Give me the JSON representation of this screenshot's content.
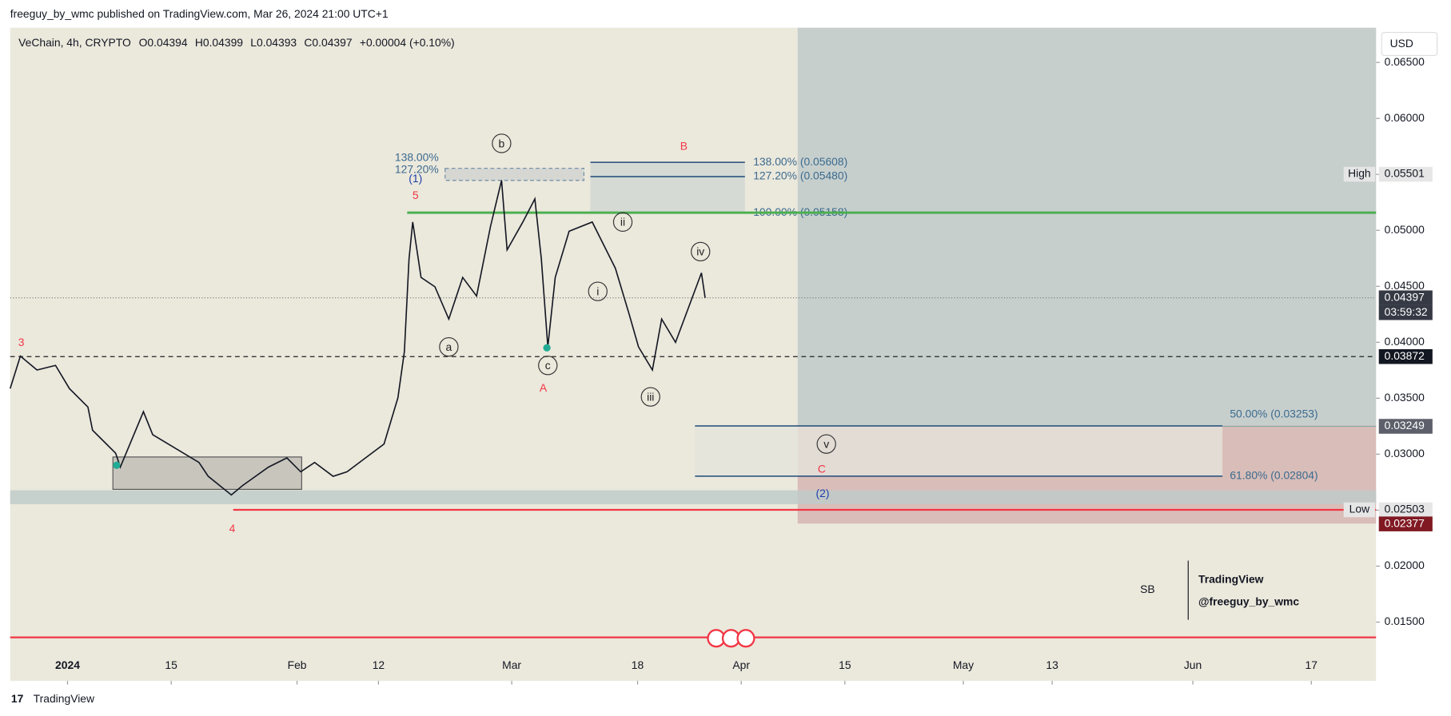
{
  "header": "freeguy_by_wmc published on TradingView.com, Mar 26, 2024 21:00 UTC+1",
  "footer": "TradingView",
  "currency": "USD",
  "watermark": {
    "logo": "SB",
    "brand": "TradingView",
    "handle": "@freeguy_by_wmc"
  },
  "chart_data": {
    "type": "line",
    "title": "VeChain, 4h, CRYPTO",
    "ohlc": [
      "O0.04394",
      "H0.04399",
      "L0.04393",
      "C0.04397",
      "+0.00004 (+0.10%)"
    ],
    "color": "#131722",
    "x": [
      -7.75,
      -6.375,
      -4.125,
      -1.625,
      0.25,
      2.75,
      3.375,
      6.5,
      7.125,
      10.25,
      11.5,
      14.625,
      17.75,
      19,
      22.125,
      23.625,
      27.125,
      29.625,
      31.5,
      33.375,
      35.875,
      37.75,
      40.25,
      42.75,
      44.625,
      45.5,
      46.125,
      46.625,
      47.75,
      49.625,
      51.5,
      53.375,
      55.25,
      57.125,
      58.625,
      59.375,
      61.5,
      63.125,
      64,
      64.875,
      65.875,
      67.75,
      70.875,
      72.125,
      74,
      75.875,
      77.125,
      79,
      80.25,
      82.125,
      84,
      85.625,
      86.125
    ],
    "values": [
      0.03587,
      0.03876,
      0.03752,
      0.03793,
      0.03587,
      0.03421,
      0.03215,
      0.03008,
      0.02884,
      0.0338,
      0.03174,
      0.0305,
      0.02926,
      0.02802,
      0.02636,
      0.02719,
      0.02884,
      0.02967,
      0.02843,
      0.02926,
      0.02802,
      0.02843,
      0.02967,
      0.03091,
      0.03504,
      0.03917,
      0.04744,
      0.05074,
      0.04579,
      0.04496,
      0.04207,
      0.04579,
      0.04413,
      0.05033,
      0.05446,
      0.04826,
      0.05074,
      0.05281,
      0.04744,
      0.03959,
      0.04579,
      0.04992,
      0.05074,
      0.04909,
      0.04661,
      0.04248,
      0.03959,
      0.03752,
      0.04207,
      0.03999,
      0.04331,
      0.0462,
      0.04397
    ],
    "xlim": [
      -7.75,
      176.75
    ],
    "xticks": [
      {
        "value": 0,
        "label": "2024"
      },
      {
        "value": 14,
        "label": "15"
      },
      {
        "value": 31,
        "label": "Feb"
      },
      {
        "value": 42,
        "label": "12"
      },
      {
        "value": 60,
        "label": "Mar"
      },
      {
        "value": 77,
        "label": "18"
      },
      {
        "value": 91,
        "label": "Apr"
      },
      {
        "value": 105,
        "label": "15"
      },
      {
        "value": 121,
        "label": "May"
      },
      {
        "value": 133,
        "label": "13"
      },
      {
        "value": 152,
        "label": "Jun"
      },
      {
        "value": 168,
        "label": "17"
      }
    ],
    "ylim": [
      0.00975,
      0.0681
    ],
    "yticks": [
      {
        "value": 0.015,
        "label": "0.01500"
      },
      {
        "value": 0.02,
        "label": "0.02000"
      },
      {
        "value": 0.025,
        "label": "0.02500"
      },
      {
        "value": 0.03,
        "label": "0.03000"
      },
      {
        "value": 0.035,
        "label": "0.03500"
      },
      {
        "value": 0.04,
        "label": "0.04000"
      },
      {
        "value": 0.045,
        "label": "0.04500"
      },
      {
        "value": 0.05,
        "label": "0.05000"
      },
      {
        "value": 0.055,
        "label": "0.05500"
      },
      {
        "value": 0.06,
        "label": "0.06000"
      },
      {
        "value": 0.065,
        "label": "0.06500"
      }
    ],
    "grid": false,
    "levels": [
      {
        "value": 0.05608,
        "label": "138.00% (0.05608)"
      },
      {
        "value": 0.0548,
        "label": "127.20% (0.05480)"
      },
      {
        "value": 0.05158,
        "label": "100.00% (0.05158)"
      },
      {
        "value": 0.03253,
        "label": "50.00% (0.03253)"
      },
      {
        "value": 0.02804,
        "label": "61.80% (0.02804)"
      }
    ],
    "small_levels": [
      "138.00%",
      "127.20%"
    ],
    "price_tags": [
      {
        "value": 0.05501,
        "label": "0.05501",
        "name": "High"
      },
      {
        "value": 0.04397,
        "label": "0.04397",
        "countdown": "03:59:32"
      },
      {
        "value": 0.03872,
        "label": "0.03872"
      },
      {
        "value": 0.03249,
        "label": "0.03249"
      },
      {
        "value": 0.02503,
        "label": "0.02503",
        "name": "Low"
      },
      {
        "value": 0.02377,
        "label": "0.02377"
      }
    ],
    "annotations": [
      "3",
      "4",
      "5",
      "(1)",
      "A",
      "B",
      "C",
      "(2)",
      "a",
      "b",
      "c",
      "i",
      "ii",
      "iii",
      "iv",
      "v"
    ]
  }
}
